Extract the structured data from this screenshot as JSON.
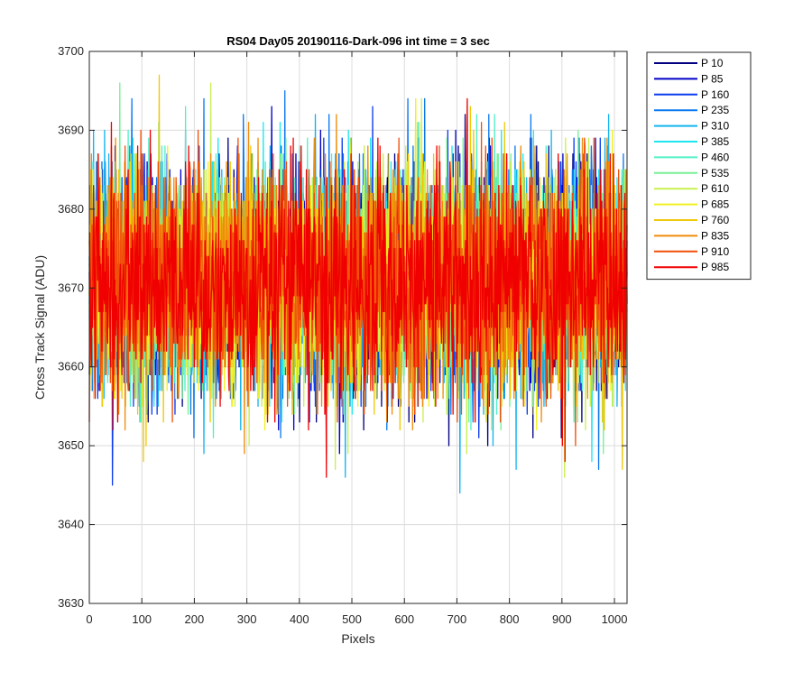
{
  "chart_data": {
    "type": "line",
    "title": "RS04 Day05 20190116-Dark-096 int time = 3 sec",
    "xlabel": "Pixels",
    "ylabel": "Cross Track Signal (ADU)",
    "xlim": [
      0,
      1024
    ],
    "ylim": [
      3630,
      3700
    ],
    "xticks": [
      "0",
      "100",
      "200",
      "300",
      "400",
      "500",
      "600",
      "700",
      "800",
      "900",
      "1000"
    ],
    "yticks": [
      "3630",
      "3640",
      "3650",
      "3660",
      "3670",
      "3680",
      "3690",
      "3700"
    ],
    "grid": true,
    "legend_position": "outside-top-right",
    "signal_mean": 3671,
    "signal_std": 7,
    "points_per_series": 1024,
    "series": [
      {
        "name": "P 10",
        "color": "#000080"
      },
      {
        "name": "P 85",
        "color": "#0000c8"
      },
      {
        "name": "P 160",
        "color": "#0a3cf0"
      },
      {
        "name": "P 235",
        "color": "#0a78f0"
      },
      {
        "name": "P 310",
        "color": "#14b4f0"
      },
      {
        "name": "P 385",
        "color": "#1ee6f0"
      },
      {
        "name": "P 460",
        "color": "#50f0c8"
      },
      {
        "name": "P 535",
        "color": "#78f096"
      },
      {
        "name": "P 610",
        "color": "#c8f050"
      },
      {
        "name": "P 685",
        "color": "#f0f01e"
      },
      {
        "name": "P 760",
        "color": "#f0c80a"
      },
      {
        "name": "P 835",
        "color": "#f08c0a"
      },
      {
        "name": "P 910",
        "color": "#f0500a"
      },
      {
        "name": "P 985",
        "color": "#f00000"
      }
    ]
  }
}
